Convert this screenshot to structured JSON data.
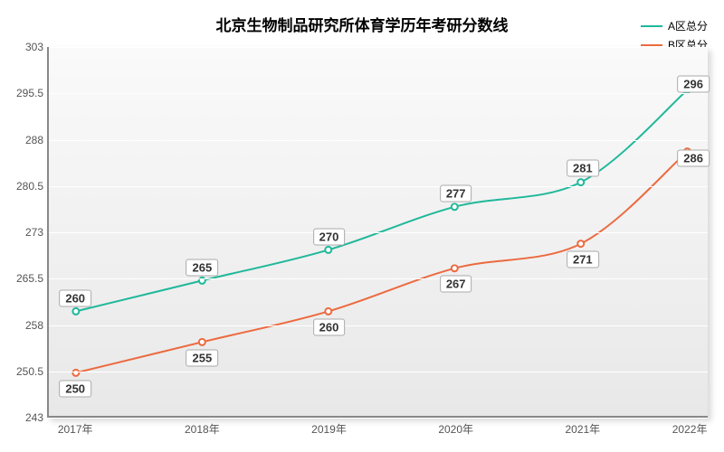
{
  "chart": {
    "type": "line",
    "title": "北京生物制品研究所体育学历年考研分数线",
    "title_fontsize": 17,
    "title_fontweight": "bold",
    "background_top": "#fafafa",
    "background_bottom": "#e8e8e8",
    "grid_color": "#ffffff",
    "axis_color": "#888888",
    "text_color": "#555555",
    "label_box_border": "#aaaaaa",
    "label_box_bg": "#ffffff",
    "x_categories": [
      "2017年",
      "2018年",
      "2019年",
      "2020年",
      "2021年",
      "2022年"
    ],
    "x_positions_pct": [
      4,
      23.2,
      42.4,
      61.6,
      80.8,
      97
    ],
    "ymin": 243,
    "ymax": 303,
    "yticks": [
      243,
      250.5,
      258,
      265.5,
      273,
      280.5,
      288,
      295.5,
      303
    ],
    "series": [
      {
        "name": "A区总分",
        "color": "#1fb89a",
        "line_width": 2,
        "values": [
          260,
          265,
          270,
          277,
          281,
          296
        ],
        "label_offset_y": -16
      },
      {
        "name": "B区总分",
        "color": "#ec6a3f",
        "line_width": 2,
        "values": [
          250,
          255,
          260,
          267,
          271,
          286
        ],
        "label_offset_y": 16
      }
    ],
    "legend": {
      "position": "top-right",
      "fontsize": 12
    },
    "tick_fontsize": 12,
    "point_label_fontsize": 13
  }
}
